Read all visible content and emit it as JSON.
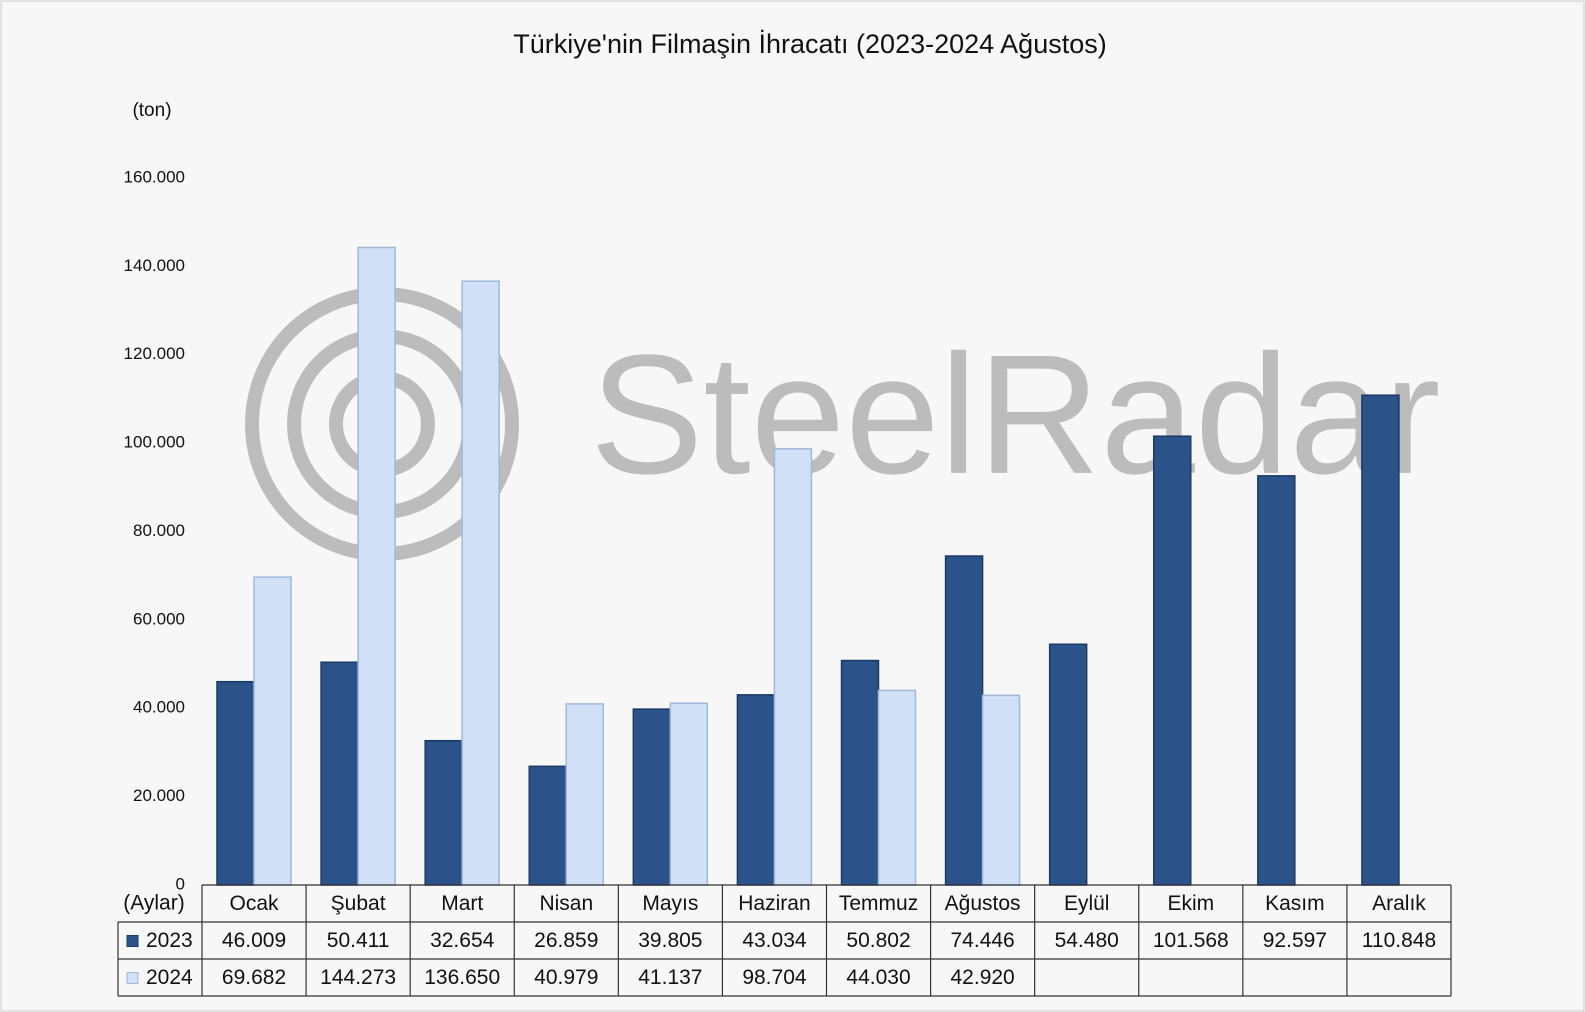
{
  "chart_data": {
    "type": "bar",
    "title": "Türkiye'nin Filmaşin İhracatı (2023-2024 Ağustos)",
    "y_label": "(ton)",
    "x_label": "(Aylar)",
    "watermark": "SteelRadar",
    "categories": [
      "Ocak",
      "Şubat",
      "Mart",
      "Nisan",
      "Mayıs",
      "Haziran",
      "Temmuz",
      "Ağustos",
      "Eylül",
      "Ekim",
      "Kasım",
      "Aralık"
    ],
    "series": [
      {
        "name": "2023",
        "color": "#2b5289",
        "values": [
          46009,
          50411,
          32654,
          26859,
          39805,
          43034,
          50802,
          74446,
          54480,
          101568,
          92597,
          110848
        ],
        "value_labels": [
          "46.009",
          "50.411",
          "32.654",
          "26.859",
          "39.805",
          "43.034",
          "50.802",
          "74.446",
          "54.480",
          "101.568",
          "92.597",
          "110.848"
        ]
      },
      {
        "name": "2024",
        "color": "#cfe0f7",
        "values": [
          69682,
          144273,
          136650,
          40979,
          41137,
          98704,
          44030,
          42920,
          null,
          null,
          null,
          null
        ],
        "value_labels": [
          "69.682",
          "144.273",
          "136.650",
          "40.979",
          "41.137",
          "98.704",
          "44.030",
          "42.920",
          null,
          null,
          null,
          null
        ]
      }
    ],
    "ylim": [
      0,
      160000
    ],
    "yticks": [
      0,
      {
        "value": 20000,
        "label": "20.000"
      },
      {
        "value": 40000,
        "label": "40.000"
      },
      {
        "value": 60000,
        "label": "60.000"
      },
      {
        "value": 80000,
        "label": "80.000"
      },
      {
        "value": 100000,
        "label": "100.000"
      },
      {
        "value": 120000,
        "label": "120.000"
      },
      {
        "value": 140000,
        "label": "140.000"
      },
      {
        "value": 160000,
        "label": "160.000"
      }
    ],
    "grid": false
  }
}
